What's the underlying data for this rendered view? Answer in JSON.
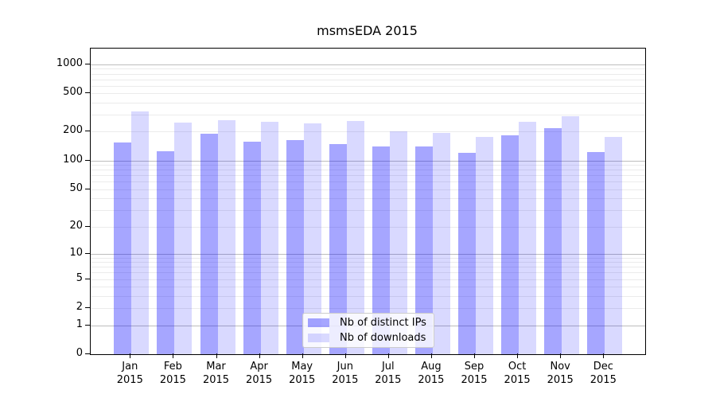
{
  "title": "msmsEDA 2015",
  "colors": {
    "bar_distinct_ips": "rgba(0,0,255,0.35)",
    "bar_downloads": "rgba(0,0,255,0.15)",
    "grid_minor": "#ebebeb",
    "grid_major": "#bdbdbd",
    "spine": "#000000",
    "legend_border": "#cccccc",
    "text": "#000000"
  },
  "chart_data": {
    "type": "bar",
    "title": "msmsEDA 2015",
    "y_scale": "log1p",
    "ylim": [
      0,
      1460
    ],
    "yticks": [
      1000,
      500,
      200,
      100,
      50,
      20,
      10,
      5,
      2,
      1,
      0
    ],
    "grid": true,
    "legend_position": "lower center",
    "categories": [
      "Jan 2015",
      "Feb 2015",
      "Mar 2015",
      "Apr 2015",
      "May 2015",
      "Jun 2015",
      "Jul 2015",
      "Aug 2015",
      "Sep 2015",
      "Oct 2015",
      "Nov 2015",
      "Dec 2015"
    ],
    "series": [
      {
        "name": "Nb of distinct IPs",
        "color": "rgba(0,0,255,0.35)",
        "values": [
          155,
          126,
          189,
          158,
          163,
          150,
          140,
          141,
          121,
          182,
          218,
          123
        ]
      },
      {
        "name": "Nb of downloads",
        "color": "rgba(0,0,255,0.15)",
        "values": [
          323,
          248,
          263,
          255,
          244,
          260,
          200,
          195,
          175,
          255,
          287,
          175
        ]
      }
    ]
  }
}
